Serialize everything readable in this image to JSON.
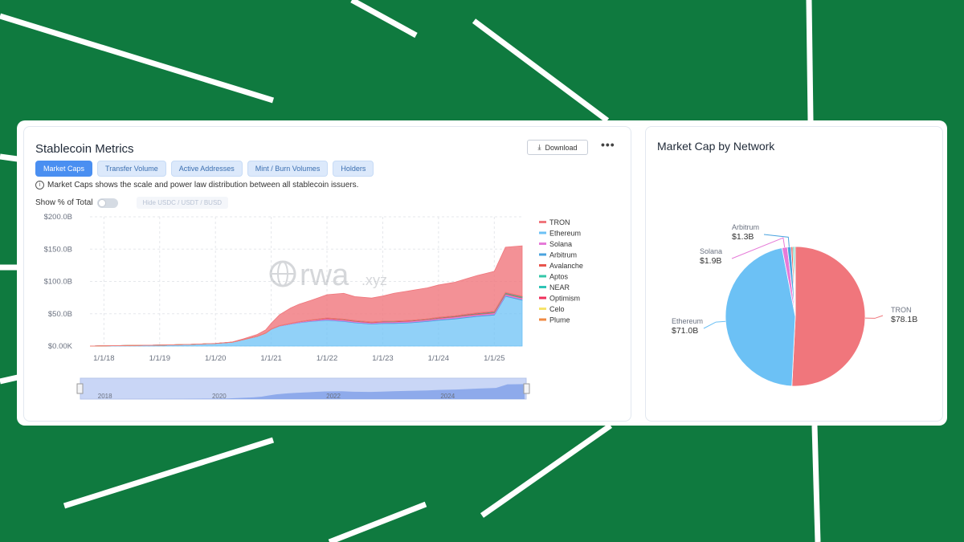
{
  "colors": {
    "background": "#0f7a3f",
    "tron": "#f0767c",
    "ethereum": "#6cc1f5",
    "solana": "#e67ad8",
    "arbitrum": "#4aa3df",
    "avalanche": "#e8554d",
    "aptos": "#34c7a8",
    "near": "#2ec4b6",
    "optimism": "#ef2f5c",
    "celo": "#f6e36a",
    "plume": "#f08a43",
    "accent": "#4a8ff1"
  },
  "left_panel": {
    "title": "Stablecoin Metrics",
    "download_label": "Download",
    "download_icon": "download-icon",
    "more_label": "•••",
    "tabs": [
      {
        "label": "Market Caps",
        "active": true
      },
      {
        "label": "Transfer Volume",
        "active": false
      },
      {
        "label": "Active Addresses",
        "active": false
      },
      {
        "label": "Mint / Burn Volumes",
        "active": false
      },
      {
        "label": "Holders",
        "active": false
      }
    ],
    "info_icon": "info-icon",
    "info_text": "Market Caps shows the scale and power law distribution between all stablecoin issuers.",
    "toggle_label": "Show % of Total",
    "toggle_on": false,
    "hide_label": "Hide USDC / USDT / BUSD",
    "watermark": "rwa",
    "watermark_suffix": ".xyz"
  },
  "right_panel": {
    "title": "Market Cap by Network"
  },
  "chart_data": [
    {
      "type": "area",
      "stacked": true,
      "title": "",
      "ylim": [
        0,
        200
      ],
      "y_unit": "B",
      "yticks": [
        "$0.00K",
        "$50.0B",
        "$100.0B",
        "$150.0B",
        "$200.0B"
      ],
      "xticks": [
        "1/1/18",
        "1/1/19",
        "1/1/20",
        "1/1/21",
        "1/1/22",
        "1/1/23",
        "1/1/24",
        "1/1/25"
      ],
      "x": [
        2017.75,
        2018.0,
        2019.0,
        2019.5,
        2020.0,
        2020.3,
        2020.5,
        2020.75,
        2020.9,
        2021.0,
        2021.15,
        2021.35,
        2021.5,
        2021.7,
        2021.85,
        2022.0,
        2022.3,
        2022.5,
        2022.8,
        2023.0,
        2023.2,
        2023.5,
        2023.8,
        2024.0,
        2024.3,
        2024.5,
        2024.7,
        2024.85,
        2025.0,
        2025.2,
        2025.5
      ],
      "series": [
        {
          "name": "TRON",
          "values": [
            0,
            0,
            0,
            0,
            0.1,
            0.4,
            1.2,
            3,
            5,
            9,
            17,
            24,
            27,
            30,
            33,
            36,
            40,
            37,
            37,
            39,
            43,
            46,
            48,
            50,
            52,
            55,
            58,
            60,
            62,
            70,
            78
          ]
        },
        {
          "name": "Ethereum",
          "values": [
            0,
            0.4,
            1.5,
            2.5,
            4,
            6,
            10,
            15,
            20,
            26,
            31,
            34,
            36,
            38,
            39,
            40,
            38,
            36,
            34,
            35,
            35,
            36,
            38,
            40,
            42,
            44,
            46,
            47,
            48,
            77,
            71
          ]
        },
        {
          "name": "Solana",
          "values": [
            0,
            0,
            0,
            0,
            0,
            0,
            0,
            0,
            0,
            0.2,
            0.5,
            0.8,
            1,
            1.2,
            1.4,
            1.6,
            1.6,
            1.5,
            1.4,
            1.4,
            1.5,
            1.5,
            1.6,
            1.7,
            1.8,
            1.8,
            1.8,
            1.8,
            1.9,
            1.9,
            1.9
          ]
        },
        {
          "name": "Arbitrum",
          "values": [
            0,
            0,
            0,
            0,
            0,
            0,
            0,
            0,
            0,
            0,
            0,
            0.2,
            0.4,
            0.5,
            0.6,
            0.7,
            0.8,
            0.8,
            0.8,
            0.9,
            1,
            1,
            1.1,
            1.1,
            1.2,
            1.2,
            1.2,
            1.2,
            1.3,
            1.3,
            1.3
          ]
        },
        {
          "name": "Avalanche",
          "values": [
            0,
            0,
            0,
            0,
            0,
            0,
            0,
            0,
            0,
            0,
            0,
            0,
            0.2,
            0.4,
            0.6,
            0.8,
            0.8,
            0.7,
            0.6,
            0.6,
            0.6,
            0.7,
            0.7,
            0.8,
            0.9,
            1,
            1,
            1,
            1,
            1,
            1
          ]
        },
        {
          "name": "Aptos",
          "values": [
            0,
            0,
            0,
            0,
            0,
            0,
            0,
            0,
            0,
            0,
            0,
            0,
            0,
            0,
            0,
            0,
            0,
            0,
            0,
            0,
            0,
            0,
            0,
            0.1,
            0.2,
            0.3,
            0.4,
            0.5,
            0.6,
            0.8,
            0.9
          ]
        },
        {
          "name": "NEAR",
          "values": [
            0,
            0,
            0,
            0,
            0,
            0,
            0,
            0,
            0,
            0,
            0,
            0,
            0,
            0,
            0,
            0,
            0.1,
            0.1,
            0.1,
            0.1,
            0.1,
            0.1,
            0.2,
            0.2,
            0.2,
            0.3,
            0.3,
            0.3,
            0.3,
            0.4,
            0.4
          ]
        },
        {
          "name": "Optimism",
          "values": [
            0,
            0,
            0,
            0,
            0,
            0,
            0,
            0,
            0,
            0,
            0,
            0,
            0.1,
            0.2,
            0.3,
            0.4,
            0.4,
            0.4,
            0.4,
            0.4,
            0.5,
            0.5,
            0.5,
            0.6,
            0.6,
            0.6,
            0.6,
            0.6,
            0.6,
            0.6,
            0.6
          ]
        },
        {
          "name": "Celo",
          "values": [
            0,
            0,
            0,
            0,
            0,
            0,
            0,
            0,
            0,
            0,
            0,
            0,
            0,
            0,
            0,
            0,
            0,
            0,
            0,
            0,
            0,
            0,
            0,
            0,
            0,
            0,
            0,
            0,
            0,
            0,
            0
          ]
        },
        {
          "name": "Plume",
          "values": [
            0,
            0,
            0,
            0,
            0,
            0,
            0,
            0,
            0,
            0,
            0,
            0,
            0,
            0,
            0,
            0,
            0,
            0,
            0,
            0,
            0,
            0,
            0,
            0,
            0,
            0,
            0,
            0,
            0,
            0,
            0
          ]
        }
      ],
      "legend": [
        "TRON",
        "Ethereum",
        "Solana",
        "Arbitrum",
        "Avalanche",
        "Aptos",
        "NEAR",
        "Optimism",
        "Celo",
        "Plume"
      ],
      "legend_position": "right",
      "grid": true,
      "navigator_labels": [
        "2018",
        "2020",
        "2022",
        "2024"
      ]
    },
    {
      "type": "pie",
      "title": "Market Cap by Network",
      "slices": [
        {
          "name": "TRON",
          "value": 78.1,
          "label": "$78.1B"
        },
        {
          "name": "Ethereum",
          "value": 71.0,
          "label": "$71.0B"
        },
        {
          "name": "Solana",
          "value": 1.9,
          "label": "$1.9B"
        },
        {
          "name": "Arbitrum",
          "value": 1.3,
          "label": "$1.3B"
        },
        {
          "name": "Avalanche",
          "value": 0.6
        },
        {
          "name": "Aptos",
          "value": 0.5
        },
        {
          "name": "NEAR",
          "value": 0.4
        }
      ]
    }
  ]
}
